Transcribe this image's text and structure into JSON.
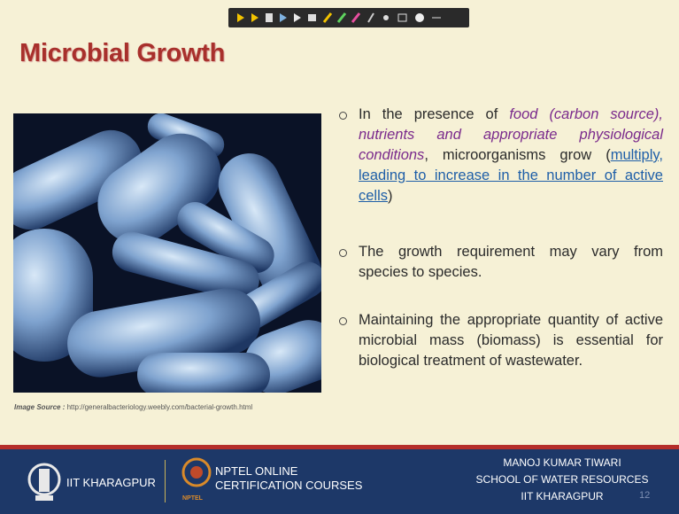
{
  "slide": {
    "title": "Microbial Growth",
    "image_source": {
      "label": "Image Source :",
      "url": "http://generalbacteriology.weebly.com/bacterial-growth.html"
    },
    "bullets": [
      {
        "segments": [
          "In the presence of ",
          "food (carbon source), nutrients and appropriate physiological conditions",
          ", microorganisms grow (",
          "multiply, leading to increase in the number of active cells",
          ")"
        ]
      },
      {
        "segments": [
          "The growth requirement may vary from species to species."
        ]
      },
      {
        "segments": [
          "Maintaining the appropriate quantity of active microbial mass (biomass) is essential for biological treatment of wastewater."
        ]
      }
    ],
    "page_number": "12"
  },
  "footer": {
    "institute": "IIT KHARAGPUR",
    "nptel_line1": "NPTEL ONLINE",
    "nptel_line2": "CERTIFICATION COURSES",
    "nptel_logo_text": "NPTEL",
    "author": "MANOJ KUMAR TIWARI",
    "school": "SCHOOL OF WATER RESOURCES",
    "author_institute": "IIT KHARAGPUR"
  }
}
